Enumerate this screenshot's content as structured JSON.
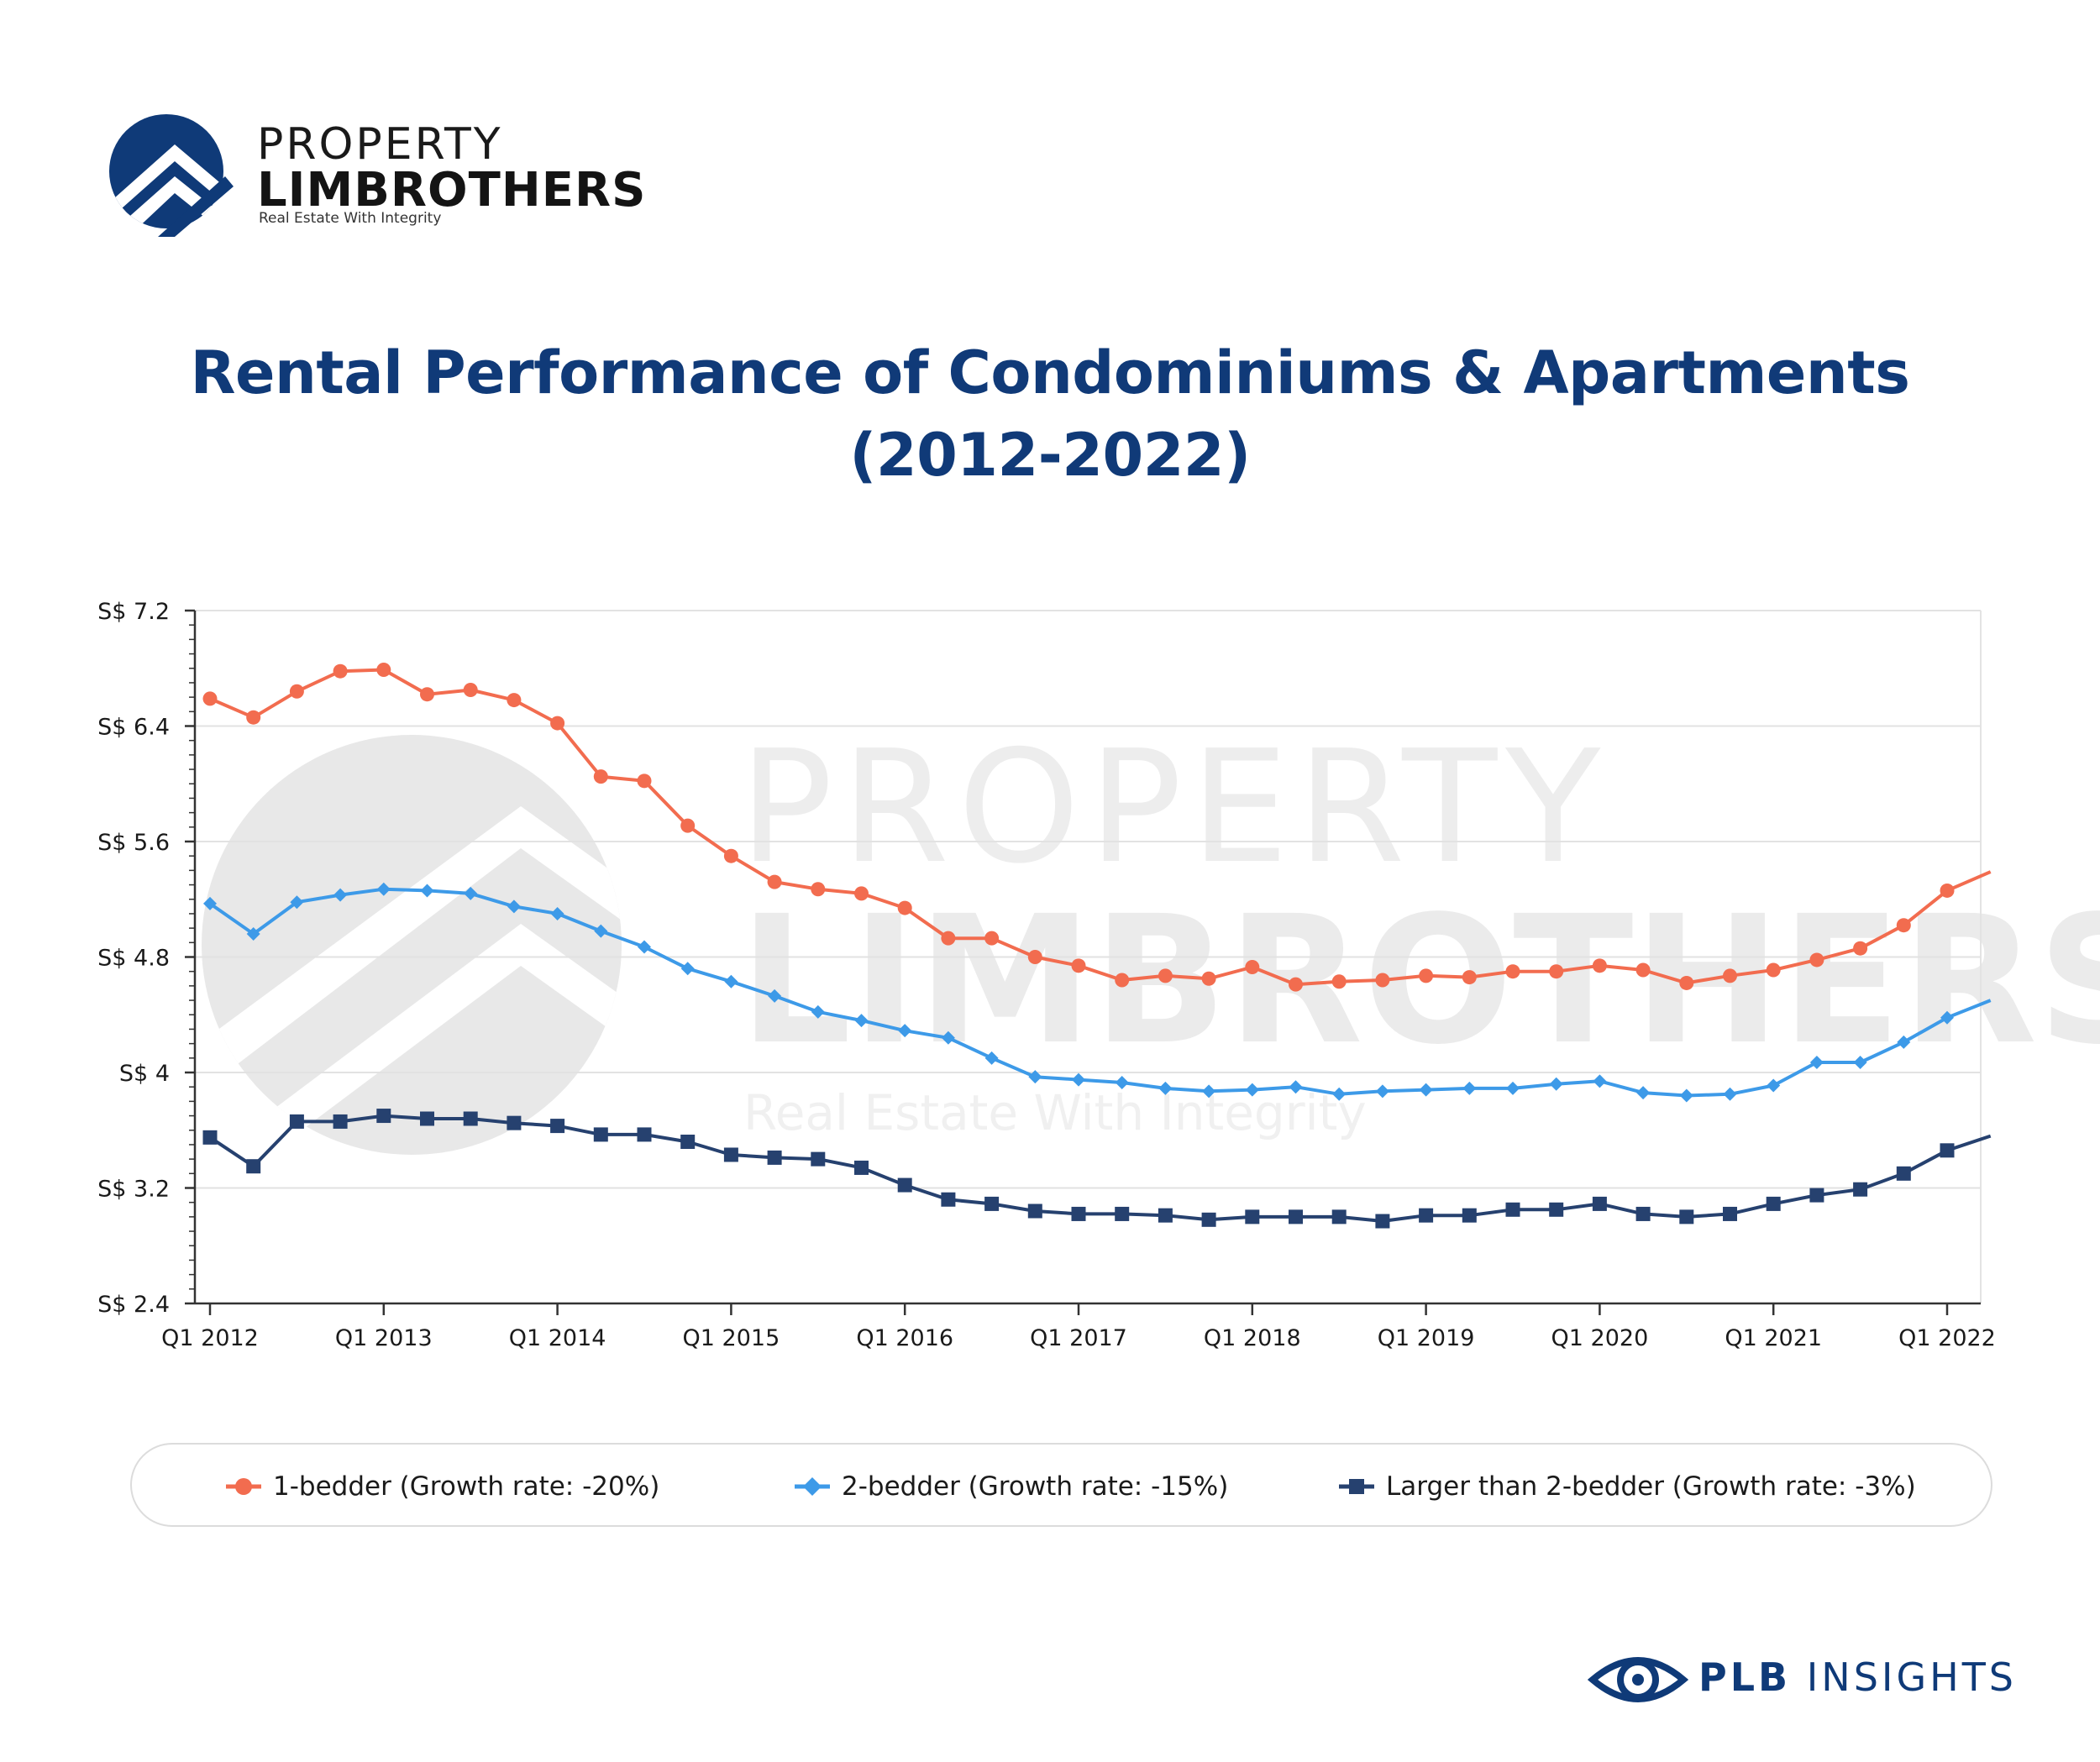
{
  "brand": {
    "name_line1": "PROPERTY",
    "name_line2": "LIMBROTHERS",
    "tagline": "Real Estate With Integrity",
    "logo_icon": "house-roof-circle-icon",
    "color": "#0f3a78"
  },
  "title": {
    "line1": "Rental Performance of Condominiums & Apartments",
    "line2": "(2012-2022)"
  },
  "watermark": {
    "line1": "PROPERTY",
    "line2": "LIMBROTHERS",
    "line3": "Real Estate With Integrity"
  },
  "footer": {
    "icon": "eye-icon",
    "brand_bold": "PLB",
    "brand_rest": " INSIGHTS"
  },
  "chart_data": {
    "type": "line",
    "title": "Rental Performance of Condominiums & Apartments (2012-2022)",
    "xlabel": "",
    "ylabel": "",
    "ylim": [
      2.4,
      7.2
    ],
    "yticks": [
      2.4,
      3.2,
      4,
      4.8,
      5.6,
      6.4,
      7.2
    ],
    "ytick_labels": [
      "S$ 2.4",
      "S$ 3.2",
      "S$ 4",
      "S$ 4.8",
      "S$ 5.6",
      "S$ 6.4",
      "S$ 7.2"
    ],
    "xtick_labels": [
      "Q1 2012",
      "Q1 2013",
      "Q1 2014",
      "Q1 2015",
      "Q1 2016",
      "Q1 2017",
      "Q1 2018",
      "Q1 2019",
      "Q1 2020",
      "Q1 2021",
      "Q1 2022"
    ],
    "x_quarters": [
      "Q1 2012",
      "Q2 2012",
      "Q3 2012",
      "Q4 2012",
      "Q1 2013",
      "Q2 2013",
      "Q3 2013",
      "Q4 2013",
      "Q1 2014",
      "Q2 2014",
      "Q3 2014",
      "Q4 2014",
      "Q1 2015",
      "Q2 2015",
      "Q3 2015",
      "Q4 2015",
      "Q1 2016",
      "Q2 2016",
      "Q3 2016",
      "Q4 2016",
      "Q1 2017",
      "Q2 2017",
      "Q3 2017",
      "Q4 2017",
      "Q1 2018",
      "Q2 2018",
      "Q3 2018",
      "Q4 2018",
      "Q1 2019",
      "Q2 2019",
      "Q3 2019",
      "Q4 2019",
      "Q1 2020",
      "Q2 2020",
      "Q3 2020",
      "Q4 2020",
      "Q1 2021",
      "Q2 2021",
      "Q3 2021",
      "Q4 2021",
      "Q1 2022",
      "Q2 2022"
    ],
    "grid": true,
    "legend_position": "bottom",
    "series": [
      {
        "name": "1-bedder (Growth rate: -20%)",
        "color": "#f26c4f",
        "marker": "circle",
        "values": [
          6.59,
          6.46,
          6.64,
          6.78,
          6.79,
          6.62,
          6.65,
          6.58,
          6.42,
          6.05,
          6.02,
          5.71,
          5.5,
          5.32,
          5.27,
          5.24,
          5.14,
          4.93,
          4.93,
          4.8,
          4.74,
          4.64,
          4.67,
          4.65,
          4.73,
          4.61,
          4.63,
          4.64,
          4.67,
          4.66,
          4.7,
          4.7,
          4.74,
          4.71,
          4.62,
          4.67,
          4.71,
          4.78,
          4.86,
          5.02,
          5.26,
          5.39
        ]
      },
      {
        "name": "2-bedder (Growth rate: -15%)",
        "color": "#3d9ae8",
        "marker": "diamond",
        "values": [
          5.17,
          4.96,
          5.18,
          5.23,
          5.27,
          5.26,
          5.24,
          5.15,
          5.1,
          4.98,
          4.87,
          4.72,
          4.63,
          4.53,
          4.42,
          4.36,
          4.29,
          4.24,
          4.1,
          3.97,
          3.95,
          3.93,
          3.89,
          3.87,
          3.88,
          3.9,
          3.85,
          3.87,
          3.88,
          3.89,
          3.89,
          3.92,
          3.94,
          3.86,
          3.84,
          3.85,
          3.91,
          4.07,
          4.07,
          4.21,
          4.38,
          4.5
        ]
      },
      {
        "name": "Larger than 2-bedder (Growth rate: -3%)",
        "color": "#26416f",
        "marker": "square",
        "values": [
          3.55,
          3.35,
          3.66,
          3.66,
          3.7,
          3.68,
          3.68,
          3.65,
          3.63,
          3.57,
          3.57,
          3.52,
          3.43,
          3.41,
          3.4,
          3.34,
          3.22,
          3.12,
          3.09,
          3.04,
          3.02,
          3.02,
          3.01,
          2.98,
          3.0,
          3.0,
          3.0,
          2.97,
          3.01,
          3.01,
          3.05,
          3.05,
          3.09,
          3.02,
          3.0,
          3.02,
          3.09,
          3.15,
          3.19,
          3.3,
          3.46,
          3.56
        ]
      }
    ]
  }
}
